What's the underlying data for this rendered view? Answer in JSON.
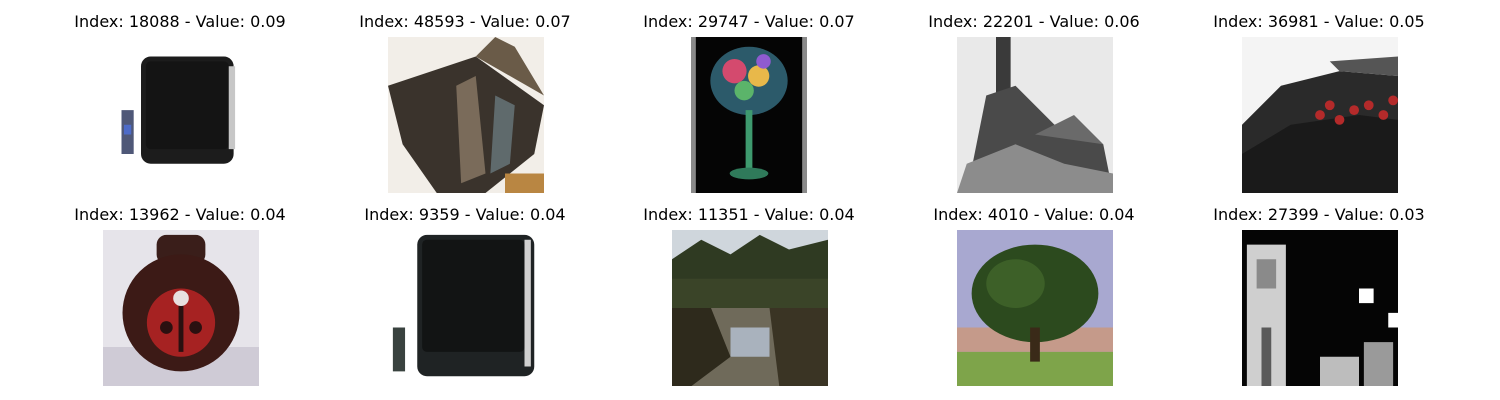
{
  "figure": {
    "rows": [
      [
        {
          "title": "Index: 18088 - Value: 0.09",
          "icon": "crt-television-with-remote"
        },
        {
          "title": "Index: 48593 - Value: 0.07",
          "icon": "dark-box-object"
        },
        {
          "title": "Index: 29747 - Value: 0.07",
          "icon": "colorful-glass-on-black"
        },
        {
          "title": "Index: 22201 - Value: 0.06",
          "icon": "grayscale-structure"
        },
        {
          "title": "Index: 36981 - Value: 0.05",
          "icon": "digital-alarm-clock"
        }
      ],
      [
        {
          "title": "Index: 13962 - Value: 0.04",
          "icon": "ladybug-round-object"
        },
        {
          "title": "Index: 9359 - Value: 0.04",
          "icon": "crt-television-with-remote"
        },
        {
          "title": "Index: 11351 - Value: 0.04",
          "icon": "lake-with-trees"
        },
        {
          "title": "Index: 4010 - Value: 0.04",
          "icon": "tree-in-field"
        },
        {
          "title": "Index: 27399 - Value: 0.03",
          "icon": "grayscale-person"
        }
      ]
    ]
  }
}
